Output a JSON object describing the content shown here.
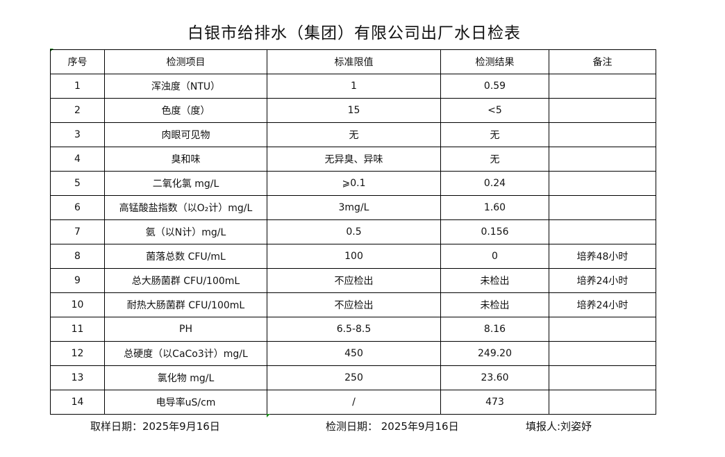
{
  "title": "白银市给排水（集团）有限公司出厂水日检表",
  "headers": [
    "序号",
    "检测项目",
    "标准限值",
    "检测结果",
    "备注"
  ],
  "rows": [
    [
      "1",
      "浑浊度（NTU）",
      "1",
      "0.59",
      ""
    ],
    [
      "2",
      "色度（度）",
      "15",
      "<5",
      ""
    ],
    [
      "3",
      "肉眼可见物",
      "无",
      "无",
      ""
    ],
    [
      "4",
      "臭和味",
      "无异臭、异味",
      "无",
      ""
    ],
    [
      "5",
      "二氧化氯 mg/L",
      "⩾0.1",
      "0.24",
      ""
    ],
    [
      "6",
      "高锰酸盐指数（以O₂计）mg/L",
      "3mg/L",
      "1.60",
      ""
    ],
    [
      "7",
      "氨（以N计）mg/L",
      "0.5",
      "0.156",
      ""
    ],
    [
      "8",
      "菌落总数 CFU/mL",
      "100",
      "0",
      "培养48小时"
    ],
    [
      "9",
      "总大肠菌群 CFU/100mL",
      "不应检出",
      "未检出",
      "培养24小时"
    ],
    [
      "10",
      "耐热大肠菌群 CFU/100mL",
      "不应检出",
      "未检出",
      "培养24小时"
    ],
    [
      "11",
      "PH",
      "6.5-8.5",
      "8.16",
      ""
    ],
    [
      "12",
      "总硬度（以CaCo3计）mg/L",
      "450",
      "249.20",
      ""
    ],
    [
      "13",
      "氯化物 mg/L",
      "250",
      "23.60",
      ""
    ],
    [
      "14",
      "电导率uS/cm",
      "/",
      "473",
      ""
    ]
  ],
  "footer": {
    "sampling_date": "取样日期：2025年9月16日",
    "test_date": "检测日期： 2025年9月16日",
    "reporter": "填报人:刘姿妤"
  }
}
